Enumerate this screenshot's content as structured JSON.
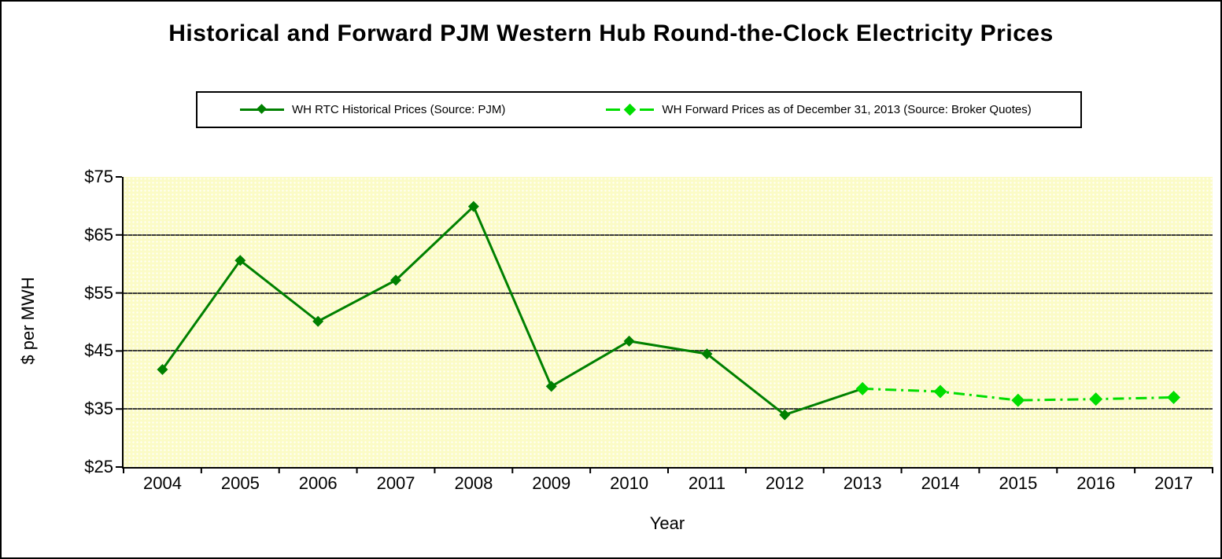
{
  "title": "Historical and Forward PJM Western Hub Round-the-Clock Electricity Prices",
  "colors": {
    "historical_line": "#008000",
    "forward_line": "#00DD00",
    "plot_background": "#FBFBC6",
    "gridline": "#3A3A3A",
    "axis": "#000000",
    "frame_border": "#000000"
  },
  "chart_data": {
    "type": "line",
    "title": "Historical and Forward PJM Western Hub Round-the-Clock Electricity Prices",
    "xlabel": "Year",
    "ylabel": "$ per MWH",
    "ylim": [
      25,
      75
    ],
    "ytick_step": 10,
    "ytick_labels": [
      "$25",
      "$35",
      "$45",
      "$55",
      "$65",
      "$75"
    ],
    "grid": "horizontal",
    "legend_position": "top",
    "categories": [
      2004,
      2005,
      2006,
      2007,
      2008,
      2009,
      2010,
      2011,
      2012,
      2013,
      2014,
      2015,
      2016,
      2017
    ],
    "series": [
      {
        "name": "WH RTC Historical Prices (Source: PJM)",
        "color": "#008000",
        "line_style": "solid",
        "marker": "diamond",
        "x": [
          2004,
          2005,
          2006,
          2007,
          2008,
          2009,
          2010,
          2011,
          2012,
          2013
        ],
        "values": [
          41.8,
          60.6,
          50.1,
          57.2,
          69.9,
          38.9,
          46.7,
          44.5,
          34.0,
          38.5
        ]
      },
      {
        "name": "WH Forward Prices as of December 31, 2013 (Source: Broker Quotes)",
        "color": "#00DD00",
        "line_style": "dash-dot",
        "marker": "diamond",
        "x": [
          2013,
          2014,
          2015,
          2016,
          2017
        ],
        "values": [
          38.5,
          38.0,
          36.5,
          36.7,
          37.0
        ]
      }
    ]
  }
}
